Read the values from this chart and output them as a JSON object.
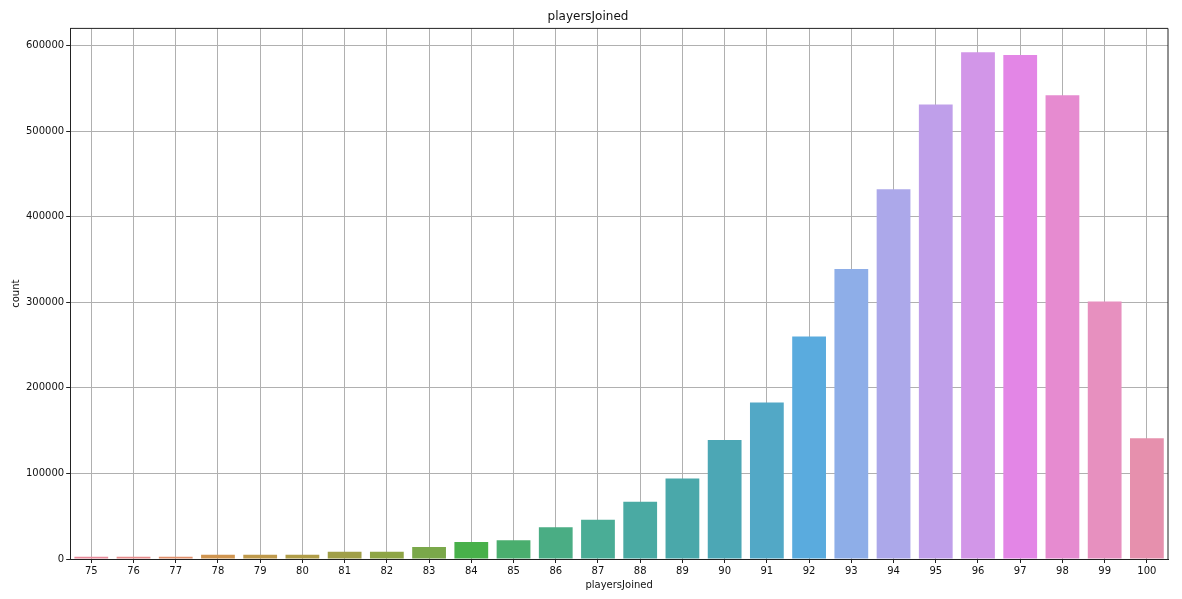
{
  "chart_data": {
    "type": "bar",
    "title": "playersJoined",
    "xlabel": "playersJoined",
    "ylabel": "count",
    "categories": [
      "75",
      "76",
      "77",
      "78",
      "79",
      "80",
      "81",
      "82",
      "83",
      "84",
      "85",
      "86",
      "87",
      "88",
      "89",
      "90",
      "91",
      "92",
      "93",
      "94",
      "95",
      "96",
      "97",
      "98",
      "99",
      "100"
    ],
    "values": [
      2700,
      2700,
      2700,
      5000,
      5000,
      5000,
      8400,
      8400,
      14000,
      20000,
      22000,
      37000,
      46000,
      67000,
      94000,
      139000,
      183000,
      260000,
      339000,
      432000,
      531000,
      592000,
      589000,
      542000,
      301000,
      141000
    ],
    "colors": [
      "#e88a9a",
      "#e68c8c",
      "#e0906c",
      "#cf9550",
      "#bf9a4c",
      "#b09d48",
      "#a09f48",
      "#8ea546",
      "#7aa84a",
      "#48b04a",
      "#4aae6e",
      "#4aad84",
      "#4aad96",
      "#4aaaa3",
      "#4aa8aa",
      "#4ca7b5",
      "#52a8c6",
      "#5aabde",
      "#8eaee8",
      "#aca8ea",
      "#bf9fea",
      "#d296e8",
      "#e386e6",
      "#e68bd0",
      "#e790bf",
      "#e690ad"
    ],
    "ylim": [
      0,
      620000
    ],
    "yticks": [
      0,
      100000,
      200000,
      300000,
      400000,
      500000,
      600000
    ],
    "grid": true,
    "legend": false
  }
}
